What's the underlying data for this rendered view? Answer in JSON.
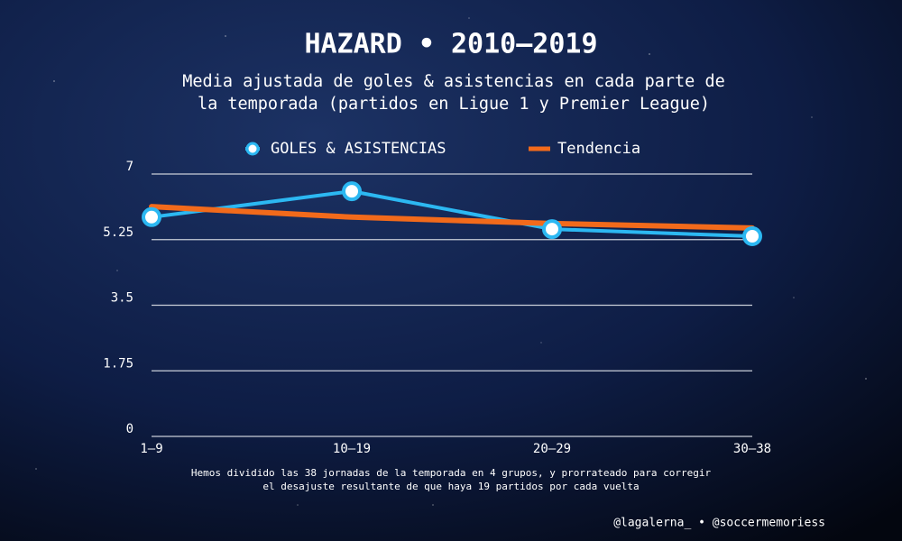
{
  "chart_data": {
    "type": "line",
    "title": "HAZARD • 2010–2019",
    "subtitle": [
      "Media ajustada de goles & asistencias en cada parte de",
      "la temporada (partidos en Ligue 1 y Premier League)"
    ],
    "categories": [
      "1–9",
      "10–19",
      "20–29",
      "30–38"
    ],
    "series": [
      {
        "name": "GOLES & ASISTENCIAS",
        "color": "#2cb8f2",
        "marker": true,
        "values": [
          5.85,
          6.54,
          5.53,
          5.34
        ]
      },
      {
        "name": "Tendencia",
        "color": "#f26a1b",
        "marker": false,
        "values": [
          6.13,
          5.85,
          5.68,
          5.56
        ]
      }
    ],
    "ylim": [
      0,
      7
    ],
    "yticks": [
      0,
      1.75,
      3.5,
      5.25,
      7
    ],
    "grid": true,
    "note": [
      "Hemos dividido las 38 jornadas de la temporada en 4 grupos, y prorrateado para corregir",
      "el desajuste resultante de que haya 19 partidos por cada vuelta"
    ],
    "credit": "@lagalerna_ • @soccermemoriess"
  }
}
